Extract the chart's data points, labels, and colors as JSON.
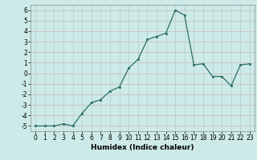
{
  "x": [
    0,
    1,
    2,
    3,
    4,
    5,
    6,
    7,
    8,
    9,
    10,
    11,
    12,
    13,
    14,
    15,
    16,
    17,
    18,
    19,
    20,
    21,
    22,
    23
  ],
  "y": [
    -5,
    -5,
    -5,
    -4.8,
    -5,
    -3.8,
    -2.8,
    -2.5,
    -1.7,
    -1.3,
    0.5,
    1.3,
    3.2,
    3.5,
    3.8,
    6.0,
    5.5,
    0.8,
    0.9,
    -0.3,
    -0.3,
    -1.2,
    0.8,
    0.9
  ],
  "xlabel": "Humidex (Indice chaleur)",
  "xlim": [
    -0.5,
    23.5
  ],
  "ylim": [
    -5.5,
    6.5
  ],
  "yticks": [
    -5,
    -4,
    -3,
    -2,
    -1,
    0,
    1,
    2,
    3,
    4,
    5,
    6
  ],
  "xticks": [
    0,
    1,
    2,
    3,
    4,
    5,
    6,
    7,
    8,
    9,
    10,
    11,
    12,
    13,
    14,
    15,
    16,
    17,
    18,
    19,
    20,
    21,
    22,
    23
  ],
  "line_color": "#2d6e63",
  "marker_color": "#2d6e63",
  "bg_color": "#cceae8",
  "grid_color_h": "#c8b8b8",
  "grid_color_v": "#b8ccc8",
  "label_fontsize": 6.5,
  "tick_fontsize": 5.5
}
